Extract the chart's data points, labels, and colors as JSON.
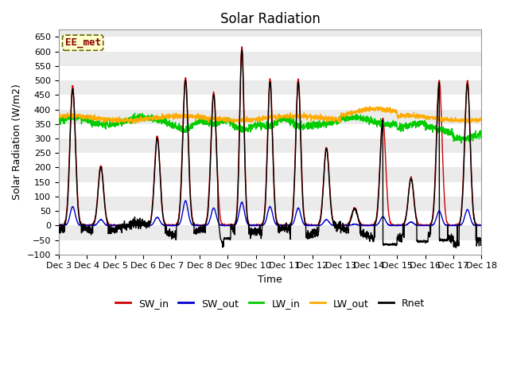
{
  "title": "Solar Radiation",
  "xlabel": "Time",
  "ylabel": "Solar Radiation (W/m2)",
  "ylim": [
    -100,
    675
  ],
  "yticks": [
    -100,
    -50,
    0,
    50,
    100,
    150,
    200,
    250,
    300,
    350,
    400,
    450,
    500,
    550,
    600,
    650
  ],
  "start_day": 3,
  "end_day": 18,
  "n_days": 16,
  "points_per_day": 144,
  "colors": {
    "SW_in": "#cc0000",
    "SW_out": "#0000cc",
    "LW_in": "#00cc00",
    "LW_out": "#ffaa00",
    "Rnet": "#000000"
  },
  "legend_label": "EE_met",
  "background_color": "#ebebeb",
  "alt_band_color": "#e0e0e0",
  "grid_color": "#ffffff",
  "title_fontsize": 12,
  "label_fontsize": 9,
  "tick_fontsize": 8
}
